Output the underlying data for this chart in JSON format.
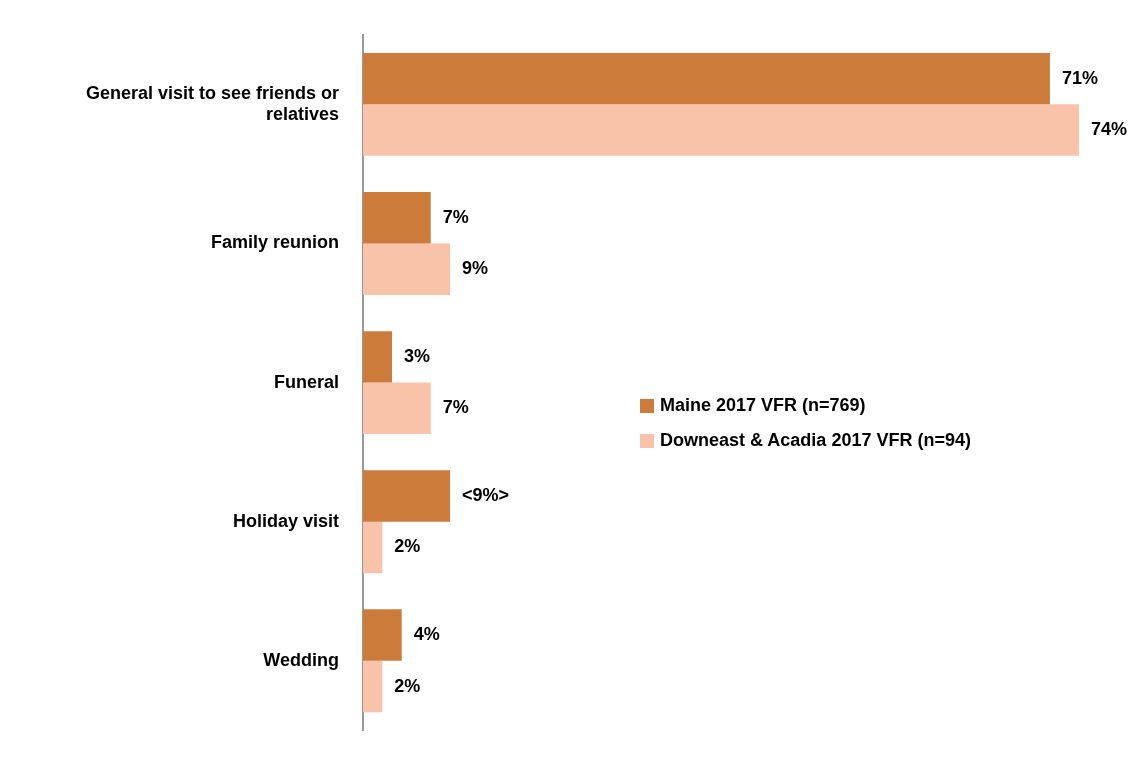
{
  "chart_data": {
    "type": "bar",
    "orientation": "horizontal",
    "categories": [
      "General visit to see friends or relatives",
      "Family reunion",
      "Funeral",
      "Holiday visit",
      "Wedding"
    ],
    "series": [
      {
        "name": "Maine 2017 VFR (n=769)",
        "color": "#cd7b3a",
        "values": [
          71,
          7,
          3,
          9,
          4
        ],
        "value_labels": [
          "71%",
          "7%",
          "3%",
          "<9%>",
          "4%"
        ]
      },
      {
        "name": "Downeast & Acadia 2017 VFR (n=94)",
        "color": "#f9c3a9",
        "values": [
          74,
          9,
          7,
          2,
          2
        ],
        "value_labels": [
          "74%",
          "9%",
          "7%",
          "2%",
          "2%"
        ]
      }
    ],
    "legend": "right",
    "tick_labels": "y"
  }
}
